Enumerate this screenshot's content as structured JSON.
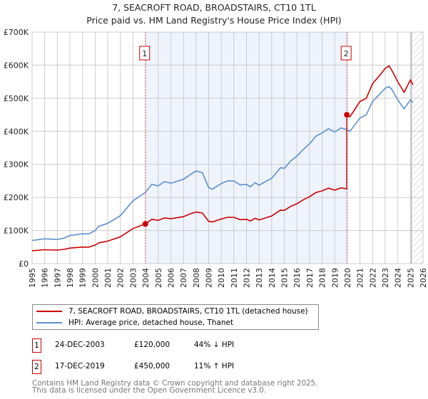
{
  "title": "7, SEACROFT ROAD, BROADSTAIRS, CT10 1TL",
  "subtitle": "Price paid vs. HM Land Registry's House Price Index (HPI)",
  "colors": {
    "property": "#cc0000",
    "hpi": "#5b8fd0",
    "shade": "#eef3fc",
    "marker_line": "#e06060"
  },
  "chart_data": {
    "type": "line",
    "title": "7, SEACROFT ROAD, BROADSTAIRS, CT10 1TL",
    "xlim": [
      1995,
      2026
    ],
    "ylim": [
      0,
      700000
    ],
    "xticks": [
      "1995",
      "1996",
      "1997",
      "1998",
      "1999",
      "2000",
      "2001",
      "2002",
      "2003",
      "2004",
      "2005",
      "2006",
      "2007",
      "2008",
      "2009",
      "2010",
      "2011",
      "2012",
      "2013",
      "2014",
      "2015",
      "2016",
      "2017",
      "2018",
      "2019",
      "2020",
      "2021",
      "2022",
      "2023",
      "2024",
      "2025",
      "2026"
    ],
    "yticks": [
      {
        "v": 0,
        "label": "£0"
      },
      {
        "v": 100000,
        "label": "£100K"
      },
      {
        "v": 200000,
        "label": "£200K"
      },
      {
        "v": 300000,
        "label": "£300K"
      },
      {
        "v": 400000,
        "label": "£400K"
      },
      {
        "v": 500000,
        "label": "£500K"
      },
      {
        "v": 600000,
        "label": "£600K"
      },
      {
        "v": 700000,
        "label": "£700K"
      }
    ],
    "grid": true,
    "shaded_period": [
      2003.98,
      2019.96
    ],
    "forecast_hatch_from": 2025.2,
    "series": [
      {
        "name": "7, SEACROFT ROAD, BROADSTAIRS, CT10 1TL (detached house)",
        "color": "#cc0000",
        "x": [
          1995,
          1996,
          1997,
          1997.5,
          1998,
          1999,
          1999.5,
          2000,
          2000.3,
          2001,
          2002,
          2003,
          2003.98,
          2004.5,
          2005,
          2005.5,
          2006,
          2007,
          2007.5,
          2008,
          2008.5,
          2009,
          2009.3,
          2010,
          2010.5,
          2011,
          2011.5,
          2012,
          2012.3,
          2012.7,
          2013,
          2013.5,
          2014,
          2014.7,
          2015,
          2015.5,
          2016,
          2016.5,
          2017,
          2017.5,
          2018,
          2018.5,
          2019,
          2019.5,
          2019.95,
          2019.96,
          2020.2,
          2020.5,
          2021,
          2021.5,
          2022,
          2022.5,
          2023,
          2023.3,
          2023.5,
          2024,
          2024.5,
          2025,
          2025.2
        ],
        "y": [
          39000,
          42000,
          41000,
          43000,
          47000,
          50000,
          50000,
          56000,
          63000,
          68000,
          81000,
          106000,
          120000,
          134000,
          131000,
          138000,
          136000,
          142000,
          150000,
          156000,
          153000,
          128000,
          126000,
          135000,
          140000,
          140000,
          133000,
          134000,
          129000,
          137000,
          132000,
          138000,
          144000,
          162000,
          161000,
          173000,
          181000,
          193000,
          202000,
          215000,
          220000,
          228000,
          222000,
          229000,
          226000,
          450000,
          444000,
          461000,
          490000,
          500000,
          544000,
          566000,
          590000,
          598000,
          586000,
          550000,
          518000,
          555000,
          541000
        ]
      },
      {
        "name": "HPI: Average price, detached house, Thanet",
        "color": "#5b8fd0",
        "x": [
          1995,
          1996,
          1997,
          1997.5,
          1998,
          1999,
          1999.5,
          2000,
          2000.3,
          2001,
          2002,
          2003,
          2003.98,
          2004.5,
          2005,
          2005.5,
          2006,
          2007,
          2007.5,
          2008,
          2008.5,
          2009,
          2009.3,
          2010,
          2010.5,
          2011,
          2011.5,
          2012,
          2012.3,
          2012.7,
          2013,
          2013.5,
          2014,
          2014.7,
          2015,
          2015.5,
          2016,
          2016.5,
          2017,
          2017.5,
          2018,
          2018.5,
          2019,
          2019.5,
          2019.96,
          2020.2,
          2020.5,
          2021,
          2021.5,
          2022,
          2022.5,
          2023,
          2023.3,
          2023.5,
          2024,
          2024.5,
          2025,
          2025.2
        ],
        "y": [
          70000,
          75000,
          73000,
          77000,
          85000,
          90000,
          90000,
          100000,
          113000,
          122000,
          145000,
          190000,
          215000,
          240000,
          235000,
          248000,
          243000,
          255000,
          268000,
          280000,
          275000,
          230000,
          225000,
          242000,
          250000,
          250000,
          238000,
          240000,
          232000,
          245000,
          237000,
          248000,
          258000,
          290000,
          288000,
          310000,
          325000,
          345000,
          362000,
          385000,
          395000,
          408000,
          398000,
          410000,
          405000,
          400000,
          415000,
          440000,
          450000,
          490000,
          510000,
          530000,
          535000,
          528000,
          495000,
          468000,
          495000,
          487000
        ]
      }
    ],
    "sales": [
      {
        "label": "1",
        "x": 2003.98,
        "y": 120000
      },
      {
        "label": "2",
        "x": 2019.96,
        "y": 450000
      }
    ]
  },
  "legend": {
    "property": "7, SEACROFT ROAD, BROADSTAIRS, CT10 1TL (detached house)",
    "hpi": "HPI: Average price, detached house, Thanet"
  },
  "transactions": [
    {
      "num": "1",
      "date": "24-DEC-2003",
      "price": "£120,000",
      "delta": "44% ↓ HPI"
    },
    {
      "num": "2",
      "date": "17-DEC-2019",
      "price": "£450,000",
      "delta": "11% ↑ HPI"
    }
  ],
  "footer": {
    "line1": "Contains HM Land Registry data © Crown copyright and database right 2025.",
    "line2": "This data is licensed under the Open Government Licence v3.0."
  }
}
